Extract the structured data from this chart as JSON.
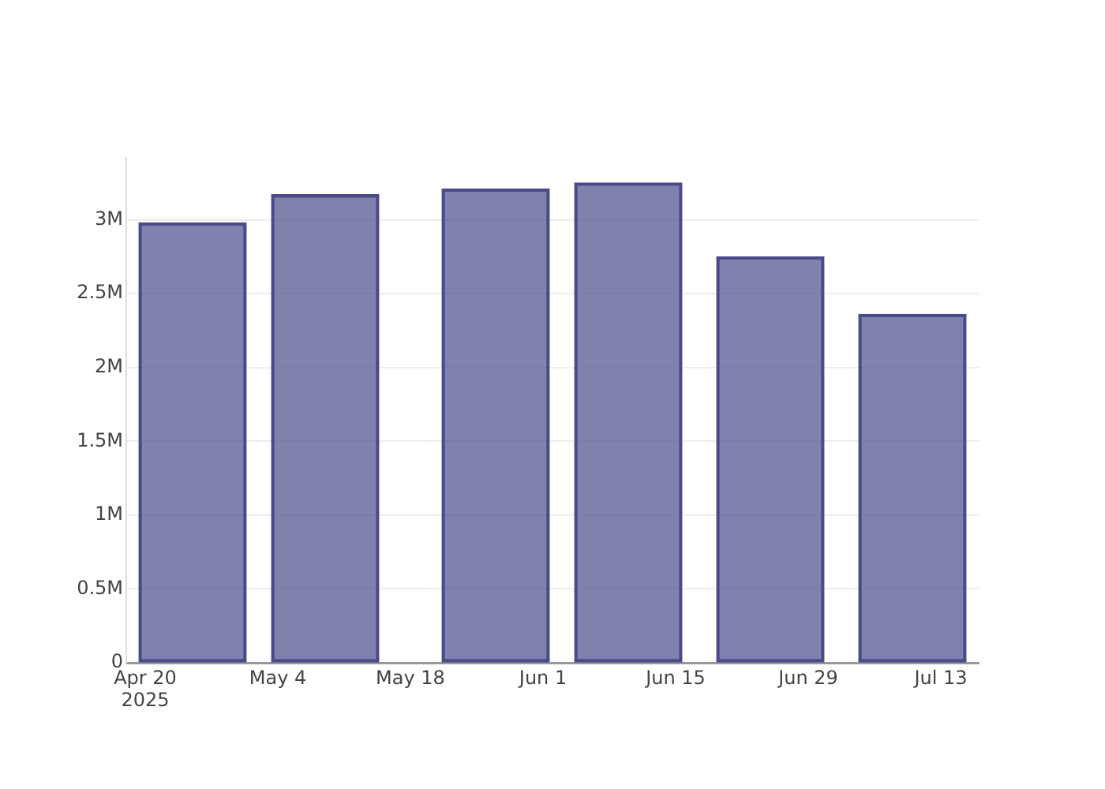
{
  "chart_data": {
    "type": "bar",
    "x": [
      "2025-04-25",
      "2025-05-09",
      "2025-05-27",
      "2025-06-10",
      "2025-06-25",
      "2025-07-10"
    ],
    "values": [
      2980000,
      3170000,
      3210000,
      3250000,
      2750000,
      2360000
    ],
    "color": "#4b4b8a",
    "xlim": [
      "2025-04-18",
      "2025-07-17"
    ],
    "xticks": [
      {
        "value": "2025-04-20",
        "label": "Apr 20\n2025"
      },
      {
        "value": "2025-05-04",
        "label": "May 4"
      },
      {
        "value": "2025-05-18",
        "label": "May 18"
      },
      {
        "value": "2025-06-01",
        "label": "Jun 1"
      },
      {
        "value": "2025-06-15",
        "label": "Jun 15"
      },
      {
        "value": "2025-06-29",
        "label": "Jun 29"
      },
      {
        "value": "2025-07-13",
        "label": "Jul 13"
      }
    ],
    "ylim": [
      0,
      3420000
    ],
    "yticks": [
      {
        "value": 0,
        "label": "0"
      },
      {
        "value": 500000,
        "label": "0.5M"
      },
      {
        "value": 1000000,
        "label": "1M"
      },
      {
        "value": 1500000,
        "label": "1.5M"
      },
      {
        "value": 2000000,
        "label": "2M"
      },
      {
        "value": 2500000,
        "label": "2.5M"
      },
      {
        "value": 3000000,
        "label": "3M"
      }
    ],
    "grid": "y"
  }
}
